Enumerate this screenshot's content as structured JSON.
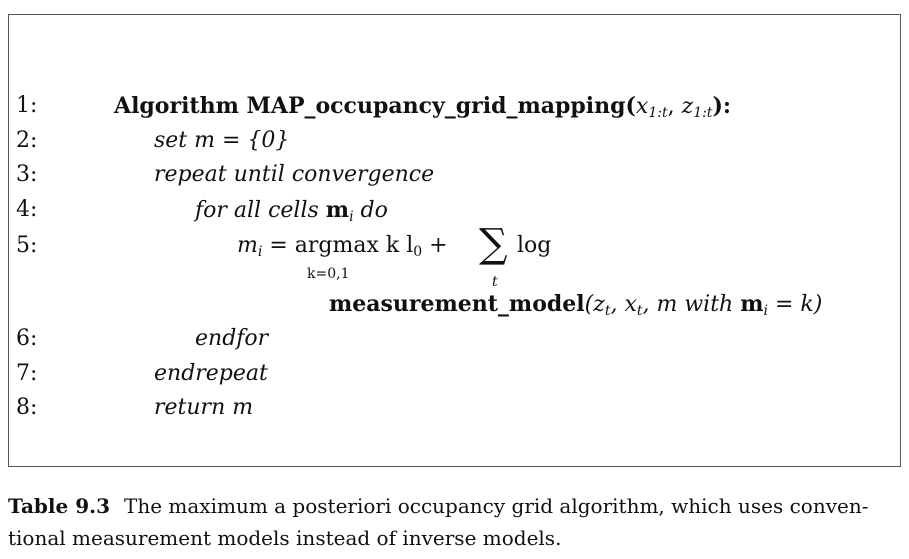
{
  "algorithm": {
    "lines": [
      {
        "num": "1:",
        "prefix": "Algorithm MAP_occupancy_grid_mapping(",
        "args": "x",
        "args_sub": "1:t",
        "sep": ", ",
        "args2": "z",
        "args2_sub": "1:t",
        "suffix": "):"
      },
      {
        "num": "2:",
        "kw": "set",
        "rest": " m = {0}"
      },
      {
        "num": "3:",
        "kw": "repeat until convergence"
      },
      {
        "num": "4:",
        "kw": "for all cells ",
        "var": "m",
        "var_sub": "i",
        "kw2": " do"
      },
      {
        "num": "5:",
        "lhs": "m",
        "lhs_sub": "i",
        "eq": " = argmax  k l",
        "l_sub": "0",
        "plus": " + ",
        "sigma": "∑",
        "sigma_sub": "t",
        "log": " log",
        "argmax_sub": "k=0,1"
      },
      {
        "num": "",
        "fn": "measurement_model",
        "open": "(z",
        "z_sub": "t",
        "comma1": ", x",
        "x_sub": "t",
        "comma2": ", m ",
        "with": "with",
        "sp": " ",
        "mvar": "m",
        "mvar_sub": "i",
        "close": " = k)"
      },
      {
        "num": "6:",
        "kw": "endfor"
      },
      {
        "num": "7:",
        "kw": "endrepeat"
      },
      {
        "num": "8:",
        "kw": "return",
        "rest": " m"
      }
    ]
  },
  "caption": {
    "label": "Table 9.3",
    "text": "The maximum a posteriori occupancy grid algorithm, which uses conven-tional measurement models instead of inverse models."
  }
}
